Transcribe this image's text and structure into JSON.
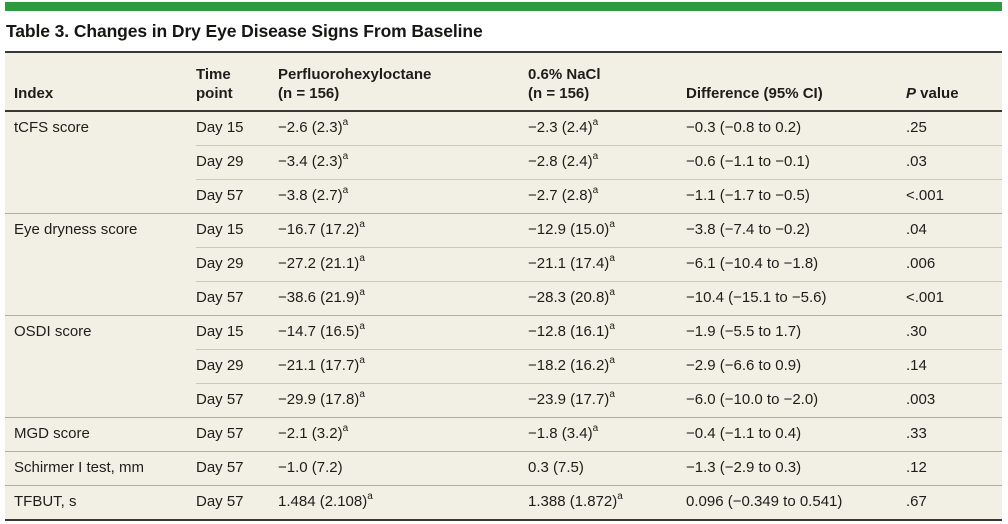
{
  "title": "Table 3. Changes in Dry Eye Disease Signs From Baseline",
  "accent_color": "#2c9a3e",
  "colors": {
    "table_background": "#f2f0e5",
    "dark_rule": "#3a3833",
    "row_rule": "#cbc8ba",
    "group_rule": "#b1ae9f"
  },
  "header": {
    "index": "Index",
    "time_line1": "Time",
    "time_line2": "point",
    "drug_line1": "Perfluorohexyloctane",
    "drug_line2": "(n = 156)",
    "nacl_line1": "0.6% NaCl",
    "nacl_line2": "(n = 156)",
    "difference": "Difference (95% CI)",
    "p_italic": "P",
    "p_rest": " value"
  },
  "rows": [
    {
      "index": "tCFS score",
      "time": "Day 15",
      "pfho": "−2.6 (2.3)",
      "pfho_sup": "a",
      "nacl": "−2.3 (2.4)",
      "nacl_sup": "a",
      "diff": "−0.3 (−0.8 to 0.2)",
      "p": ".25"
    },
    {
      "index": "",
      "time": "Day 29",
      "pfho": "−3.4 (2.3)",
      "pfho_sup": "a",
      "nacl": "−2.8 (2.4)",
      "nacl_sup": "a",
      "diff": "−0.6 (−1.1 to −0.1)",
      "p": ".03"
    },
    {
      "index": "",
      "time": "Day 57",
      "pfho": "−3.8 (2.7)",
      "pfho_sup": "a",
      "nacl": "−2.7 (2.8)",
      "nacl_sup": "a",
      "diff": "−1.1 (−1.7 to −0.5)",
      "p": "<.001"
    },
    {
      "index": "Eye dryness score",
      "time": "Day 15",
      "pfho": "−16.7 (17.2)",
      "pfho_sup": "a",
      "nacl": "−12.9 (15.0)",
      "nacl_sup": "a",
      "diff": "−3.8 (−7.4 to −0.2)",
      "p": ".04"
    },
    {
      "index": "",
      "time": "Day 29",
      "pfho": "−27.2 (21.1)",
      "pfho_sup": "a",
      "nacl": "−21.1 (17.4)",
      "nacl_sup": "a",
      "diff": "−6.1 (−10.4 to −1.8)",
      "p": ".006"
    },
    {
      "index": "",
      "time": "Day 57",
      "pfho": "−38.6 (21.9)",
      "pfho_sup": "a",
      "nacl": "−28.3 (20.8)",
      "nacl_sup": "a",
      "diff": "−10.4 (−15.1 to −5.6)",
      "p": "<.001"
    },
    {
      "index": "OSDI score",
      "time": "Day 15",
      "pfho": "−14.7 (16.5)",
      "pfho_sup": "a",
      "nacl": "−12.8 (16.1)",
      "nacl_sup": "a",
      "diff": "−1.9 (−5.5 to 1.7)",
      "p": ".30"
    },
    {
      "index": "",
      "time": "Day 29",
      "pfho": "−21.1 (17.7)",
      "pfho_sup": "a",
      "nacl": "−18.2 (16.2)",
      "nacl_sup": "a",
      "diff": "−2.9 (−6.6 to 0.9)",
      "p": ".14"
    },
    {
      "index": "",
      "time": "Day 57",
      "pfho": "−29.9 (17.8)",
      "pfho_sup": "a",
      "nacl": "−23.9 (17.7)",
      "nacl_sup": "a",
      "diff": "−6.0 (−10.0 to −2.0)",
      "p": ".003"
    },
    {
      "index": "MGD score",
      "time": "Day 57",
      "pfho": "−2.1 (3.2)",
      "pfho_sup": "a",
      "nacl": "−1.8 (3.4)",
      "nacl_sup": "a",
      "diff": "−0.4 (−1.1 to 0.4)",
      "p": ".33"
    },
    {
      "index": "Schirmer I test, mm",
      "time": "Day 57",
      "pfho": "−1.0 (7.2)",
      "nacl": "0.3 (7.5)",
      "diff": "−1.3 (−2.9 to 0.3)",
      "p": ".12"
    },
    {
      "index": "TFBUT, s",
      "time": "Day 57",
      "pfho": "1.484 (2.108)",
      "pfho_sup": "a",
      "nacl": "1.388 (1.872)",
      "nacl_sup": "a",
      "diff": "0.096 (−0.349 to 0.541)",
      "p": ".67"
    }
  ]
}
